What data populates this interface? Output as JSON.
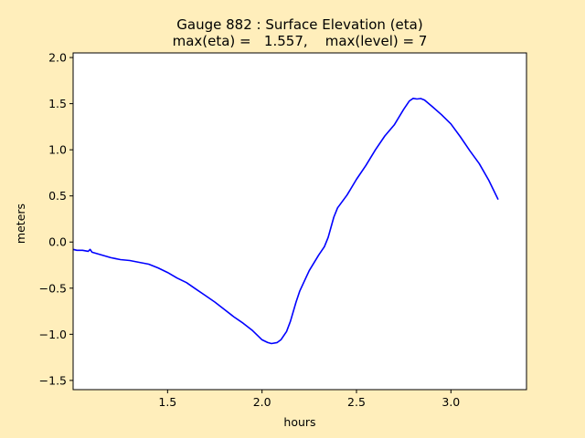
{
  "figure": {
    "background": "#ffeebb",
    "axes_background": "#ffffff",
    "line_color": "#0000ff"
  },
  "chart_data": {
    "type": "line",
    "title": "Gauge 882 : Surface Elevation (eta)",
    "subtitle": "max(eta) =   1.557,    max(level) = 7",
    "xlabel": "hours",
    "ylabel": "meters",
    "xlim": [
      1.0,
      3.4
    ],
    "ylim": [
      -1.6,
      2.05
    ],
    "grid": false,
    "xticks": [
      1.5,
      2.0,
      2.5,
      3.0
    ],
    "xtick_labels": [
      "1.5",
      "2.0",
      "2.5",
      "3.0"
    ],
    "yticks": [
      -1.5,
      -1.0,
      -0.5,
      0.0,
      0.5,
      1.0,
      1.5,
      2.0
    ],
    "ytick_labels": [
      "−1.5",
      "−1.0",
      "−0.5",
      "0.0",
      "0.5",
      "1.0",
      "1.5",
      "2.0"
    ],
    "series": [
      {
        "color": "#0000ff",
        "x": [
          1.0,
          1.02,
          1.05,
          1.08,
          1.09,
          1.1,
          1.15,
          1.2,
          1.25,
          1.3,
          1.35,
          1.4,
          1.45,
          1.5,
          1.55,
          1.6,
          1.65,
          1.7,
          1.75,
          1.8,
          1.85,
          1.9,
          1.95,
          2.0,
          2.03,
          2.05,
          2.08,
          2.1,
          2.13,
          2.15,
          2.18,
          2.2,
          2.25,
          2.3,
          2.33,
          2.35,
          2.38,
          2.4,
          2.45,
          2.5,
          2.55,
          2.6,
          2.65,
          2.7,
          2.75,
          2.78,
          2.8,
          2.82,
          2.84,
          2.86,
          2.9,
          2.95,
          3.0,
          3.05,
          3.1,
          3.15,
          3.2,
          3.25
        ],
        "y": [
          -0.08,
          -0.09,
          -0.09,
          -0.1,
          -0.08,
          -0.11,
          -0.14,
          -0.17,
          -0.19,
          -0.2,
          -0.22,
          -0.24,
          -0.28,
          -0.33,
          -0.39,
          -0.44,
          -0.51,
          -0.58,
          -0.65,
          -0.73,
          -0.81,
          -0.88,
          -0.96,
          -1.06,
          -1.09,
          -1.1,
          -1.09,
          -1.06,
          -0.97,
          -0.86,
          -0.65,
          -0.53,
          -0.31,
          -0.14,
          -0.05,
          0.05,
          0.27,
          0.37,
          0.51,
          0.68,
          0.83,
          1.0,
          1.15,
          1.27,
          1.44,
          1.53,
          1.557,
          1.55,
          1.555,
          1.54,
          1.47,
          1.38,
          1.28,
          1.14,
          0.99,
          0.85,
          0.67,
          0.46
        ]
      }
    ]
  }
}
